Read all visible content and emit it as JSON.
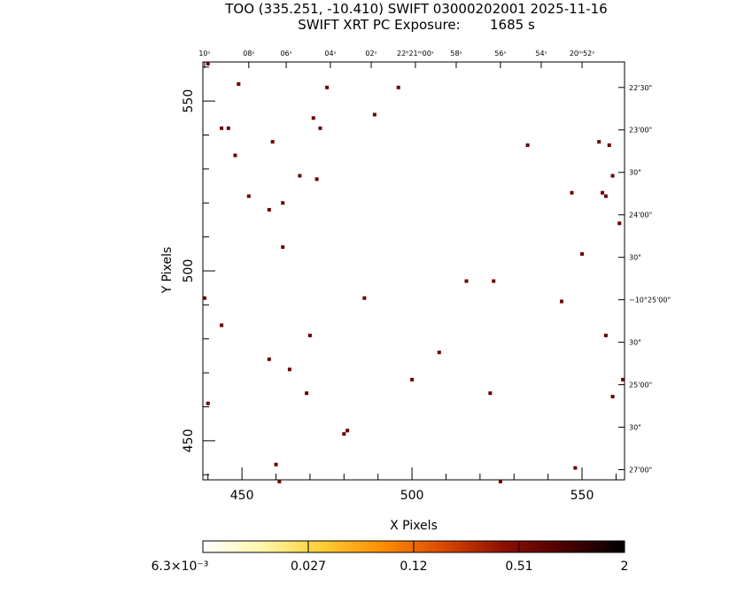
{
  "header": {
    "title_line1": "TOO (335.251, -10.410) SWIFT 03000202001 2025-11-16",
    "title_line2": "SWIFT XRT PC Exposure:       1685 s"
  },
  "chart_data": {
    "type": "scatter",
    "xlabel": "X Pixels",
    "ylabel": "Y Pixels",
    "xlim": [
      438.5,
      562.5
    ],
    "ylim": [
      438.5,
      561.5
    ],
    "x_ticks": [
      450,
      500,
      550
    ],
    "y_ticks": [
      450,
      500,
      550
    ],
    "ra_ticks": [
      {
        "label": "10ˢ",
        "x": 439.0
      },
      {
        "label": "08ˢ",
        "x": 452.0
      },
      {
        "label": "06ˢ",
        "x": 463.0
      },
      {
        "label": "04ˢ",
        "x": 476.0
      },
      {
        "label": "02ˢ",
        "x": 488.0
      },
      {
        "label": "22ʰ21ᵐ00ˢ",
        "x": 501.0
      },
      {
        "label": "58ˢ",
        "x": 513.0
      },
      {
        "label": "56ˢ",
        "x": 526.0
      },
      {
        "label": "54ˢ",
        "x": 538.0
      },
      {
        "label": "20ᵐ52ˢ",
        "x": 550.0
      }
    ],
    "dec_ticks": [
      {
        "label": "22'30\"",
        "y": 554.0
      },
      {
        "label": "23'00\"",
        "y": 541.5
      },
      {
        "label": "30\"",
        "y": 529.0
      },
      {
        "label": "24'00\"",
        "y": 516.5
      },
      {
        "label": "30\"",
        "y": 504.0
      },
      {
        "label": "−10°25'00\"",
        "y": 491.5
      },
      {
        "label": "30\"",
        "y": 479.0
      },
      {
        "label": "25'00\"",
        "y": 466.5
      },
      {
        "label": "30\"",
        "y": 454.0
      },
      {
        "label": "27'00\"",
        "y": 441.5
      }
    ],
    "points": [
      {
        "x": 440,
        "y": 561
      },
      {
        "x": 449,
        "y": 555
      },
      {
        "x": 475,
        "y": 554
      },
      {
        "x": 496,
        "y": 554
      },
      {
        "x": 471,
        "y": 545
      },
      {
        "x": 489,
        "y": 546
      },
      {
        "x": 444,
        "y": 542
      },
      {
        "x": 446,
        "y": 542
      },
      {
        "x": 473,
        "y": 542
      },
      {
        "x": 459,
        "y": 538
      },
      {
        "x": 534,
        "y": 537
      },
      {
        "x": 555,
        "y": 538
      },
      {
        "x": 558,
        "y": 537
      },
      {
        "x": 448,
        "y": 534
      },
      {
        "x": 467,
        "y": 528
      },
      {
        "x": 472,
        "y": 527
      },
      {
        "x": 559,
        "y": 528
      },
      {
        "x": 452,
        "y": 522
      },
      {
        "x": 547,
        "y": 523
      },
      {
        "x": 556,
        "y": 523
      },
      {
        "x": 557,
        "y": 522
      },
      {
        "x": 462,
        "y": 520
      },
      {
        "x": 458,
        "y": 518
      },
      {
        "x": 561,
        "y": 514
      },
      {
        "x": 462,
        "y": 507
      },
      {
        "x": 550,
        "y": 505
      },
      {
        "x": 516,
        "y": 497
      },
      {
        "x": 524,
        "y": 497
      },
      {
        "x": 439,
        "y": 492
      },
      {
        "x": 486,
        "y": 492
      },
      {
        "x": 544,
        "y": 491
      },
      {
        "x": 444,
        "y": 484
      },
      {
        "x": 470,
        "y": 481
      },
      {
        "x": 557,
        "y": 481
      },
      {
        "x": 508,
        "y": 476
      },
      {
        "x": 458,
        "y": 474
      },
      {
        "x": 464,
        "y": 471
      },
      {
        "x": 562,
        "y": 468
      },
      {
        "x": 500,
        "y": 468
      },
      {
        "x": 469,
        "y": 464
      },
      {
        "x": 523,
        "y": 464
      },
      {
        "x": 559,
        "y": 463
      },
      {
        "x": 440,
        "y": 461
      },
      {
        "x": 481,
        "y": 453
      },
      {
        "x": 480,
        "y": 452
      },
      {
        "x": 460,
        "y": 443
      },
      {
        "x": 548,
        "y": 442
      },
      {
        "x": 461,
        "y": 438
      },
      {
        "x": 526,
        "y": 438
      }
    ],
    "point_color": "#6b0000"
  },
  "colorbar": {
    "tick_labels": [
      "6.3×10⁻³",
      "0.027",
      "0.12",
      "0.51",
      "2"
    ],
    "colors": [
      "#ffffff",
      "#fff7a8",
      "#ffcc33",
      "#ff8c00",
      "#d94800",
      "#8b1000",
      "#4a0000",
      "#000000"
    ]
  }
}
